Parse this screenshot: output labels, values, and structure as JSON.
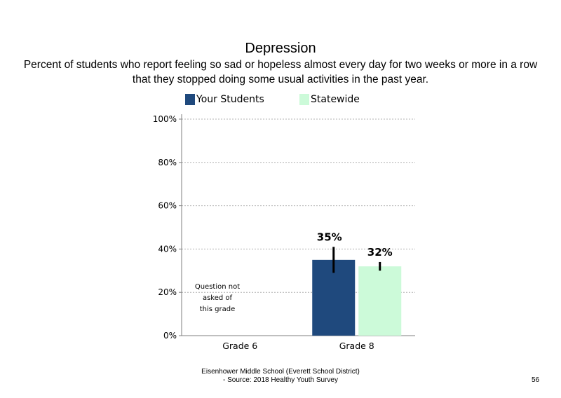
{
  "slide": {
    "footer_line1": "Eisenhower Middle School (Everett School District)",
    "footer_line2": "- Source: 2018 Healthy Youth Survey",
    "page_number": "56"
  },
  "chart_data": {
    "type": "bar",
    "title": "Depression",
    "subtitle": "Percent of students who report feeling so sad or hopeless almost every day for two weeks or more in a row that they stopped doing some usual activities in the past year.",
    "categories": [
      "Grade 6",
      "Grade 8"
    ],
    "series": [
      {
        "name": "Your Students",
        "color": "#1f497d",
        "values": [
          null,
          35
        ],
        "labels": [
          "",
          "35%"
        ],
        "error_low": [
          null,
          29
        ],
        "error_high": [
          null,
          41
        ]
      },
      {
        "name": "Statewide",
        "color": "#ccfad9",
        "values": [
          null,
          32
        ],
        "labels": [
          "",
          "32%"
        ],
        "error_low": [
          null,
          30
        ],
        "error_high": [
          null,
          34
        ]
      }
    ],
    "ylim": [
      0,
      100
    ],
    "yticks": [
      "0%",
      "20%",
      "40%",
      "60%",
      "80%",
      "100%"
    ],
    "ytick_values": [
      0,
      20,
      40,
      60,
      80,
      100
    ],
    "grid": true,
    "legend": "top",
    "annotation": "Question not asked of this grade"
  }
}
